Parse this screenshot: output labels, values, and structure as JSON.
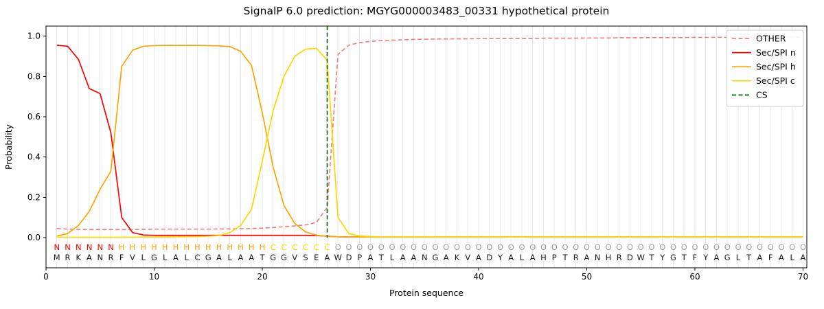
{
  "chart_data": {
    "type": "line",
    "title": "SignalP 6.0 prediction: MGYG000003483_00331 hypothetical protein",
    "xlabel": "Protein sequence",
    "ylabel": "Probability",
    "xlim": [
      0,
      70.35
    ],
    "ylim": [
      -0.15,
      1.05
    ],
    "xticks": [
      0,
      10,
      20,
      30,
      40,
      50,
      60,
      70
    ],
    "yticks": [
      "0.0",
      "0.2",
      "0.4",
      "0.6",
      "0.8",
      "1.0"
    ],
    "grid": {
      "vertical_per_residue": true,
      "color": "#e9e9e9"
    },
    "x_start": 1,
    "series": [
      {
        "name": "OTHER",
        "color": "#f08080",
        "dash": true,
        "values": [
          0.045,
          0.042,
          0.041,
          0.04,
          0.04,
          0.04,
          0.04,
          0.04,
          0.041,
          0.042,
          0.042,
          0.042,
          0.042,
          0.042,
          0.042,
          0.043,
          0.043,
          0.044,
          0.045,
          0.047,
          0.05,
          0.054,
          0.058,
          0.063,
          0.075,
          0.15,
          0.91,
          0.955,
          0.968,
          0.974,
          0.978,
          0.98,
          0.982,
          0.984,
          0.985,
          0.986,
          0.986,
          0.987,
          0.987,
          0.988,
          0.988,
          0.988,
          0.989,
          0.989,
          0.989,
          0.99,
          0.99,
          0.99,
          0.99,
          0.991,
          0.991,
          0.991,
          0.992,
          0.992,
          0.992,
          0.993,
          0.993,
          0.993,
          0.993,
          0.994,
          0.994,
          0.994,
          0.994,
          0.994,
          0.995,
          0.995,
          0.995,
          0.995,
          0.995,
          0.995
        ]
      },
      {
        "name": "Sec/SPI n",
        "color": "#ff0000",
        "dash": false,
        "values": [
          0.955,
          0.95,
          0.885,
          0.74,
          0.715,
          0.52,
          0.1,
          0.025,
          0.013,
          0.011,
          0.011,
          0.011,
          0.011,
          0.011,
          0.011,
          0.011,
          0.011,
          0.011,
          0.011,
          0.011,
          0.011,
          0.011,
          0.011,
          0.011,
          0.01,
          0.007,
          0.004,
          0.003,
          0.003,
          0.003,
          0.003,
          0.003,
          0.003,
          0.003,
          0.003,
          0.003,
          0.003,
          0.003,
          0.003,
          0.003,
          0.003,
          0.003,
          0.003,
          0.003,
          0.003,
          0.003,
          0.003,
          0.003,
          0.003,
          0.003,
          0.003,
          0.003,
          0.003,
          0.003,
          0.003,
          0.003,
          0.003,
          0.003,
          0.003,
          0.003,
          0.003,
          0.003,
          0.003,
          0.003,
          0.003,
          0.003,
          0.003,
          0.003,
          0.003,
          0.003
        ]
      },
      {
        "name": "Sec/SPI h",
        "color": "#ffa500",
        "dash": false,
        "values": [
          0.008,
          0.02,
          0.06,
          0.13,
          0.24,
          0.33,
          0.85,
          0.93,
          0.95,
          0.953,
          0.954,
          0.954,
          0.954,
          0.954,
          0.953,
          0.952,
          0.948,
          0.925,
          0.855,
          0.62,
          0.35,
          0.16,
          0.07,
          0.028,
          0.012,
          0.006,
          0.004,
          0.003,
          0.003,
          0.003,
          0.003,
          0.003,
          0.003,
          0.003,
          0.003,
          0.003,
          0.003,
          0.003,
          0.003,
          0.003,
          0.003,
          0.003,
          0.003,
          0.003,
          0.003,
          0.003,
          0.003,
          0.003,
          0.003,
          0.003,
          0.003,
          0.003,
          0.003,
          0.003,
          0.003,
          0.003,
          0.003,
          0.003,
          0.003,
          0.003,
          0.003,
          0.003,
          0.003,
          0.003,
          0.003,
          0.003,
          0.003,
          0.003,
          0.003,
          0.003
        ]
      },
      {
        "name": "Sec/SPI c",
        "color": "#ffd700",
        "dash": false,
        "values": [
          0.002,
          0.002,
          0.002,
          0.002,
          0.002,
          0.002,
          0.002,
          0.002,
          0.003,
          0.003,
          0.003,
          0.004,
          0.004,
          0.005,
          0.007,
          0.01,
          0.025,
          0.06,
          0.14,
          0.38,
          0.63,
          0.8,
          0.9,
          0.935,
          0.94,
          0.88,
          0.1,
          0.02,
          0.008,
          0.005,
          0.004,
          0.004,
          0.004,
          0.004,
          0.004,
          0.003,
          0.003,
          0.003,
          0.003,
          0.003,
          0.003,
          0.003,
          0.003,
          0.003,
          0.003,
          0.003,
          0.003,
          0.003,
          0.003,
          0.003,
          0.003,
          0.003,
          0.003,
          0.003,
          0.003,
          0.003,
          0.003,
          0.003,
          0.003,
          0.003,
          0.003,
          0.003,
          0.003,
          0.003,
          0.003,
          0.003,
          0.003,
          0.003,
          0.003,
          0.003
        ]
      }
    ],
    "cs": {
      "label": "CS",
      "position": 26,
      "color": "#006400"
    },
    "legend": {
      "position": "upper-right",
      "items": [
        {
          "label": "OTHER",
          "color": "#f08080",
          "dash": true
        },
        {
          "label": "Sec/SPI n",
          "color": "#ff0000",
          "dash": false
        },
        {
          "label": "Sec/SPI h",
          "color": "#ffa500",
          "dash": false
        },
        {
          "label": "Sec/SPI c",
          "color": "#ffd700",
          "dash": false
        },
        {
          "label": "CS",
          "color": "#006400",
          "dash": true
        }
      ]
    },
    "sequence": {
      "residues": "MRKANRFVLGLALCGALAATGGVSEAWDPATLAANGAKVADYALAHPTRANHRDWTYGTFYAGLTAFALA",
      "region_labels": "NNNNNNHHHHHHHHHHHHHHCCCCCCOOOOOOOOOOOOOOOOOOOOOOOOOOOOOOOOOOOOOOOOOOOO",
      "label_colors": {
        "N": "#ff0000",
        "H": "#ffa500",
        "C": "#ffd700",
        "O": "#9e9e9e"
      },
      "residue_color": "#1a1a1a"
    }
  }
}
